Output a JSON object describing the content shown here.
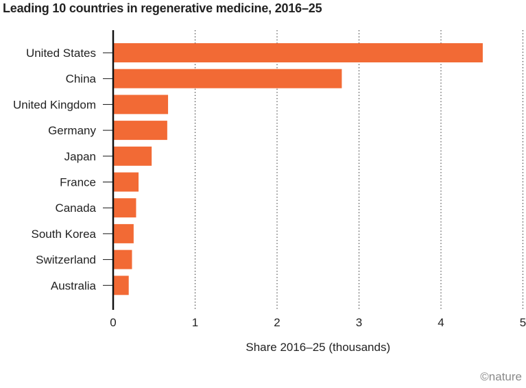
{
  "chart_data": {
    "type": "bar",
    "orientation": "horizontal",
    "title": "Leading 10 countries in regenerative medicine, 2016–25",
    "xlabel": "Share 2016–25 (thousands)",
    "ylabel": "",
    "categories": [
      "United States",
      "China",
      "United Kingdom",
      "Germany",
      "Japan",
      "France",
      "Canada",
      "South Korea",
      "Switzerland",
      "Australia"
    ],
    "values": [
      4.51,
      2.79,
      0.67,
      0.66,
      0.47,
      0.31,
      0.28,
      0.25,
      0.23,
      0.19
    ],
    "xlim": [
      0,
      5
    ],
    "xticks": [
      0,
      1,
      2,
      3,
      4,
      5
    ],
    "grid": "vertical dotted",
    "bar_color": "#F26A35",
    "credit": "©nature"
  }
}
